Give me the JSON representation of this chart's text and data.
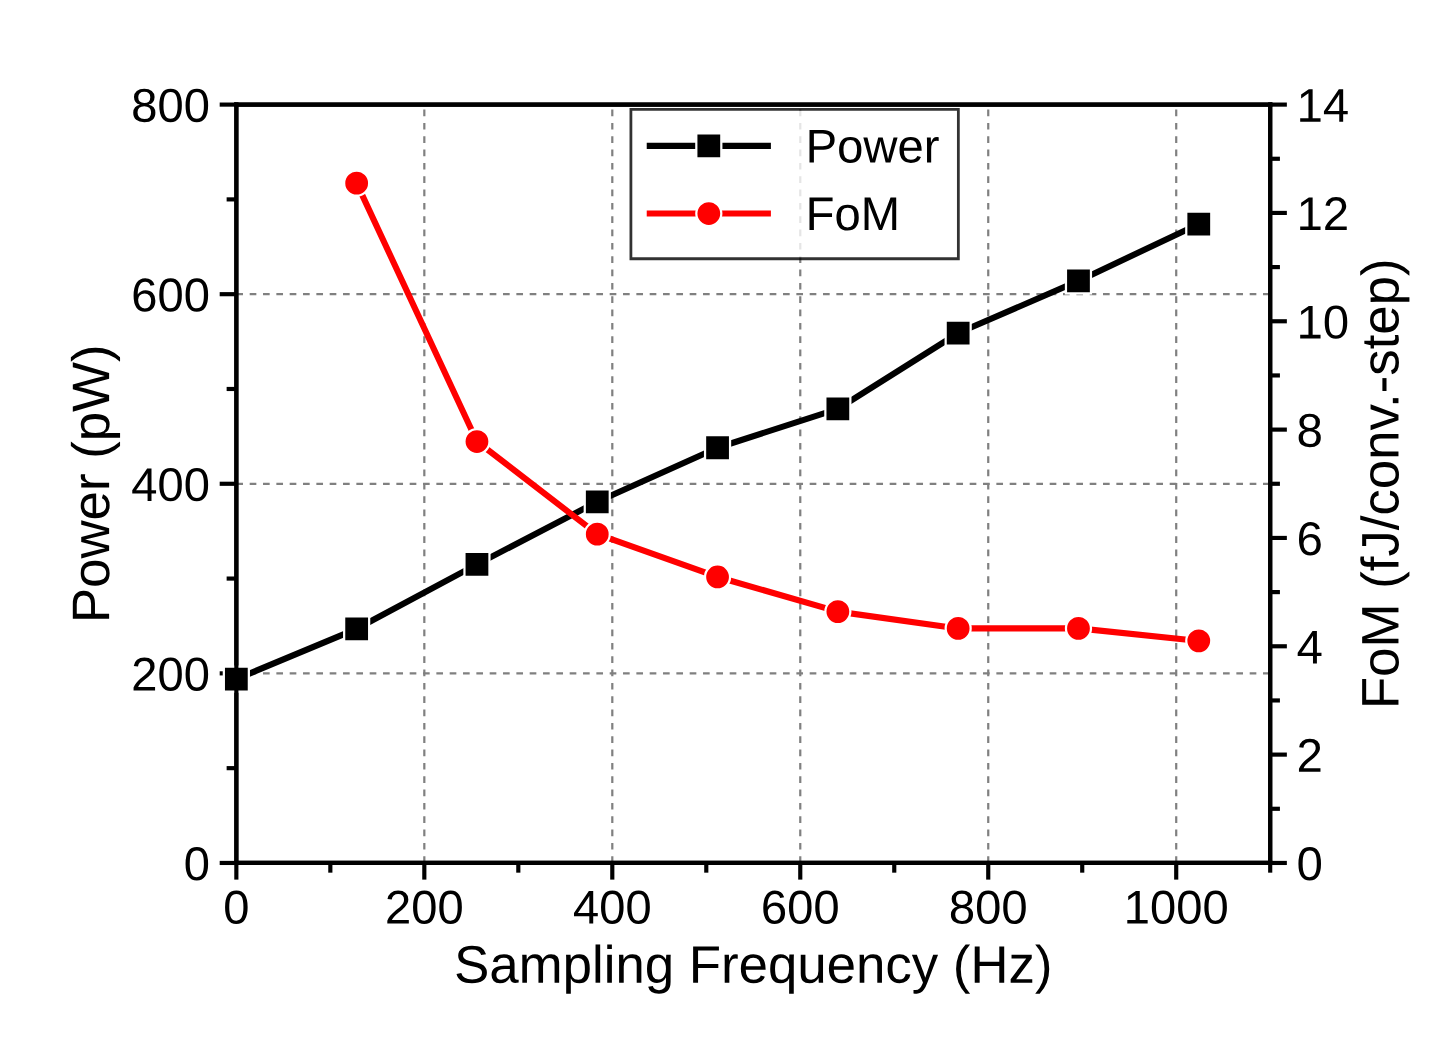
{
  "chart_data": {
    "type": "line",
    "xlabel": "Sampling Frequency (Hz)",
    "ylabel": "Power (pW)",
    "y2label": "FoM (fJ/conv.-step)",
    "x": [
      0,
      128,
      256,
      384,
      512,
      640,
      768,
      896,
      1024
    ],
    "series": [
      {
        "name": "Power",
        "color": "#000000",
        "marker": "square",
        "values": [
          194,
          247,
          315,
          381,
          438,
          479,
          559,
          614,
          674
        ]
      },
      {
        "name": "FoM",
        "color": "#ff0000",
        "marker": "circle",
        "axis": "y2",
        "values": [
          null,
          12.55,
          7.78,
          6.07,
          5.28,
          4.64,
          4.33,
          4.33,
          4.1
        ]
      }
    ],
    "xlim": [
      0,
      1100
    ],
    "xticks": [
      0,
      200,
      400,
      600,
      800,
      1000
    ],
    "ylim": [
      0,
      800
    ],
    "yticks": [
      0,
      200,
      400,
      600,
      800
    ],
    "y2lim": [
      0,
      14
    ],
    "y2ticks": [
      0,
      2,
      4,
      6,
      8,
      10,
      12,
      14
    ],
    "grid": true,
    "legend": "top",
    "line_style": "solid"
  }
}
